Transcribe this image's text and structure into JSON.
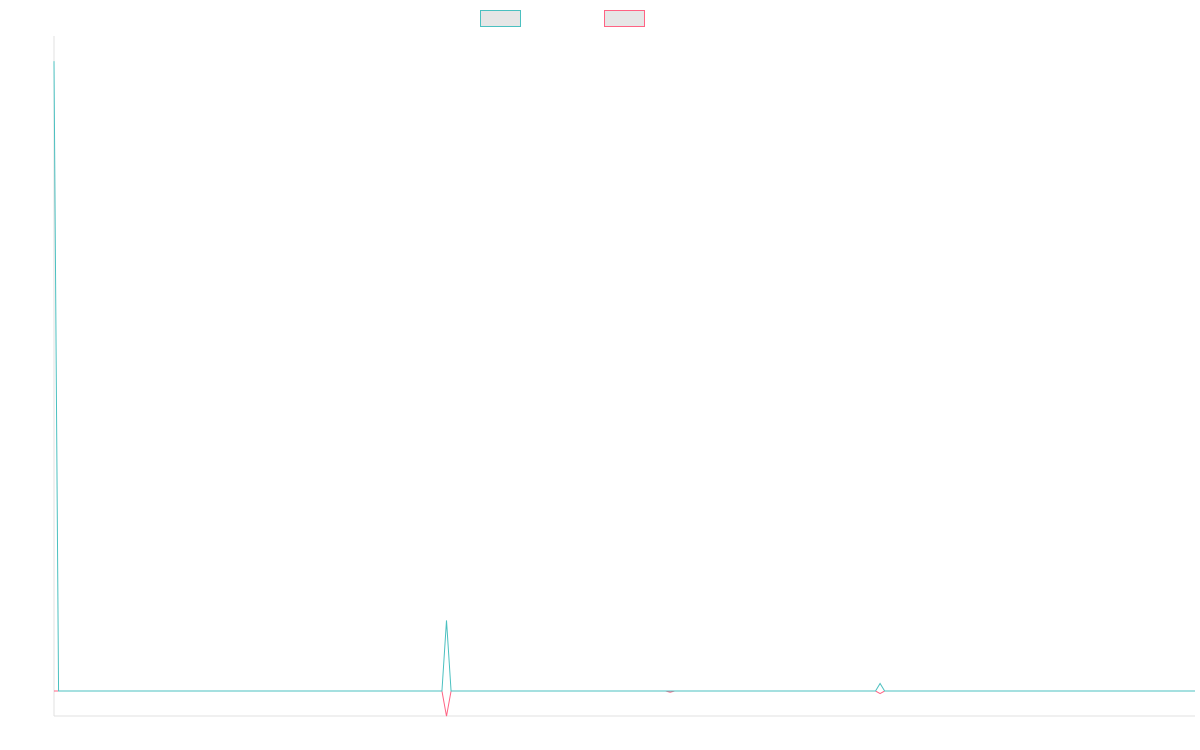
{
  "chart_data": {
    "type": "line",
    "title": "",
    "xlabel": "",
    "ylabel": "",
    "legend_position": "top-center",
    "grid": false,
    "axes_visible": false,
    "x": [
      0,
      1,
      85,
      86,
      87,
      134,
      135,
      136,
      180,
      181,
      182,
      250
    ],
    "xlim": [
      0,
      250
    ],
    "ylim": [
      -10,
      260
    ],
    "series": [
      {
        "name": "",
        "color": "#4bc0c0",
        "fill": "#e6e6e6",
        "values": [
          250,
          0,
          0,
          28,
          0,
          0,
          0,
          0,
          0,
          3,
          0,
          0
        ]
      },
      {
        "name": "",
        "color": "#ff6384",
        "fill": "#e6e6e6",
        "values": [
          0,
          0,
          0,
          -10,
          0,
          0,
          -0.5,
          0,
          0,
          -1,
          0,
          0
        ]
      }
    ]
  }
}
